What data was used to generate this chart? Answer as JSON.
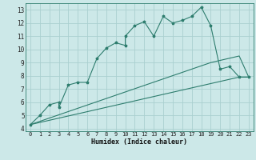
{
  "title": "",
  "xlabel": "Humidex (Indice chaleur)",
  "ylabel": "",
  "bg_color": "#cce8e8",
  "line_color": "#2e7d6e",
  "grid_color": "#aacfcf",
  "xlim": [
    -0.5,
    23.5
  ],
  "ylim": [
    3.8,
    13.5
  ],
  "xticks": [
    0,
    1,
    2,
    3,
    4,
    5,
    6,
    7,
    8,
    9,
    10,
    11,
    12,
    13,
    14,
    15,
    16,
    17,
    18,
    19,
    20,
    21,
    22,
    23
  ],
  "yticks": [
    4,
    5,
    6,
    7,
    8,
    9,
    10,
    11,
    12,
    13
  ],
  "line1_x": [
    0,
    1,
    2,
    3,
    3,
    4,
    5,
    6,
    7,
    8,
    9,
    10,
    10,
    11,
    12,
    13,
    14,
    15,
    16,
    17,
    18,
    19,
    20,
    21,
    22,
    23
  ],
  "line1_y": [
    4.3,
    5.0,
    5.8,
    6.0,
    5.6,
    7.3,
    7.5,
    7.5,
    9.3,
    10.1,
    10.5,
    10.3,
    11.0,
    11.8,
    12.1,
    11.0,
    12.5,
    12.0,
    12.2,
    12.5,
    13.2,
    11.8,
    8.5,
    8.7,
    7.9,
    7.9
  ],
  "line2_x": [
    0,
    19,
    22,
    23
  ],
  "line2_y": [
    4.3,
    9.0,
    9.5,
    7.9
  ],
  "line3_x": [
    0,
    22,
    23
  ],
  "line3_y": [
    4.3,
    7.9,
    7.9
  ]
}
